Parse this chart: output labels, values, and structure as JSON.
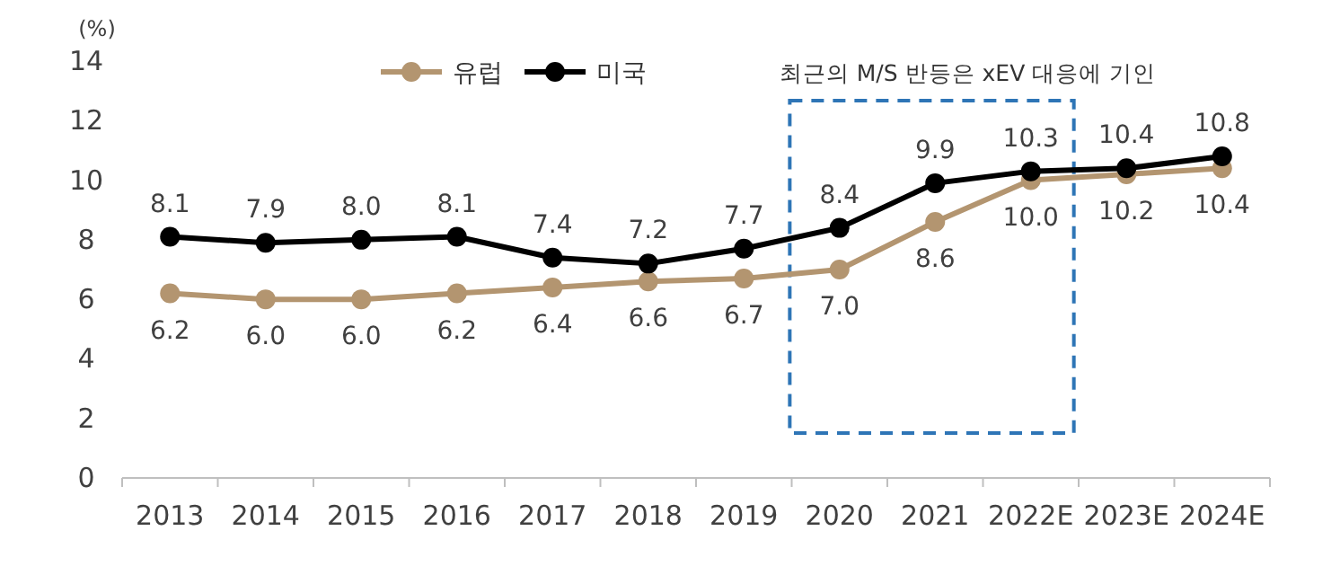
{
  "chart_data": {
    "type": "line",
    "ylabel": "(%)",
    "categories": [
      "2013",
      "2014",
      "2015",
      "2016",
      "2017",
      "2018",
      "2019",
      "2020",
      "2021",
      "2022E",
      "2023E",
      "2024E"
    ],
    "series": [
      {
        "name": "유럽",
        "color": "#b39570",
        "values": [
          6.2,
          6.0,
          6.0,
          6.2,
          6.4,
          6.6,
          6.7,
          7.0,
          8.6,
          10.0,
          10.2,
          10.4
        ],
        "value_labels": [
          "6.2",
          "6.0",
          "6.0",
          "6.2",
          "6.4",
          "6.6",
          "6.7",
          "7.0",
          "8.6",
          "10.0",
          "10.2",
          "10.4"
        ]
      },
      {
        "name": "미국",
        "color": "#000000",
        "values": [
          8.1,
          7.9,
          8.0,
          8.1,
          7.4,
          7.2,
          7.7,
          8.4,
          9.9,
          10.3,
          10.4,
          10.8
        ],
        "value_labels": [
          "8.1",
          "7.9",
          "8.0",
          "8.1",
          "7.4",
          "7.2",
          "7.7",
          "8.4",
          "9.9",
          "10.3",
          "10.4",
          "10.8"
        ]
      }
    ],
    "ylim": [
      0,
      14
    ],
    "yticks": [
      0,
      2,
      4,
      6,
      8,
      10,
      12,
      14
    ],
    "legend": "top",
    "marker": "circle",
    "annotations": [
      "최근의 M/S 반등은 xEV 대응에 기인"
    ]
  }
}
